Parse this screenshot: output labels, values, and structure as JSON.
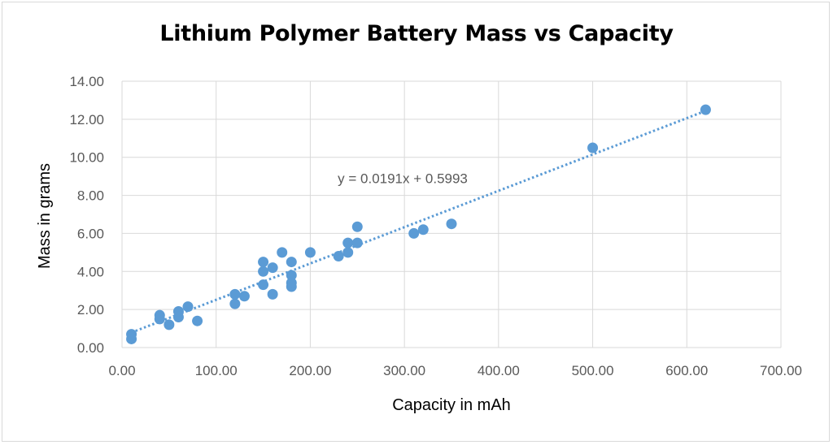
{
  "chart_data": {
    "type": "scatter",
    "title": "Lithium Polymer Battery Mass vs Capacity",
    "xlabel": "Capacity in mAh",
    "ylabel": "Mass in grams",
    "xlim": [
      0,
      700
    ],
    "ylim": [
      0,
      14
    ],
    "xticks": [
      "0.00",
      "100.00",
      "200.00",
      "300.00",
      "400.00",
      "500.00",
      "600.00",
      "700.00"
    ],
    "yticks": [
      "0.00",
      "2.00",
      "4.00",
      "6.00",
      "8.00",
      "10.00",
      "12.00",
      "14.00"
    ],
    "grid": true,
    "point_color": "#5b9bd5",
    "trendline": {
      "type": "linear",
      "slope": 0.0191,
      "intercept": 0.5993,
      "x_range": [
        10,
        620
      ],
      "style": "dotted",
      "label": "y = 0.0191x + 0.5993",
      "label_position": [
        230,
        8.9
      ]
    },
    "points": [
      {
        "x": 10,
        "y": 0.45
      },
      {
        "x": 10,
        "y": 0.7
      },
      {
        "x": 40,
        "y": 1.5
      },
      {
        "x": 40,
        "y": 1.7
      },
      {
        "x": 50,
        "y": 1.2
      },
      {
        "x": 60,
        "y": 1.6
      },
      {
        "x": 60,
        "y": 1.9
      },
      {
        "x": 70,
        "y": 2.15
      },
      {
        "x": 80,
        "y": 1.4
      },
      {
        "x": 120,
        "y": 2.3
      },
      {
        "x": 120,
        "y": 2.8
      },
      {
        "x": 130,
        "y": 2.7
      },
      {
        "x": 150,
        "y": 3.3
      },
      {
        "x": 150,
        "y": 4.0
      },
      {
        "x": 150,
        "y": 4.5
      },
      {
        "x": 160,
        "y": 2.8
      },
      {
        "x": 160,
        "y": 4.2
      },
      {
        "x": 170,
        "y": 5.0
      },
      {
        "x": 180,
        "y": 3.2
      },
      {
        "x": 180,
        "y": 3.4
      },
      {
        "x": 180,
        "y": 3.8
      },
      {
        "x": 180,
        "y": 4.5
      },
      {
        "x": 200,
        "y": 5.0
      },
      {
        "x": 230,
        "y": 4.8
      },
      {
        "x": 240,
        "y": 5.0
      },
      {
        "x": 240,
        "y": 5.5
      },
      {
        "x": 250,
        "y": 5.5
      },
      {
        "x": 250,
        "y": 6.35
      },
      {
        "x": 310,
        "y": 6.0
      },
      {
        "x": 320,
        "y": 6.2
      },
      {
        "x": 350,
        "y": 6.5
      },
      {
        "x": 500,
        "y": 10.5
      },
      {
        "x": 620,
        "y": 12.5
      }
    ]
  }
}
